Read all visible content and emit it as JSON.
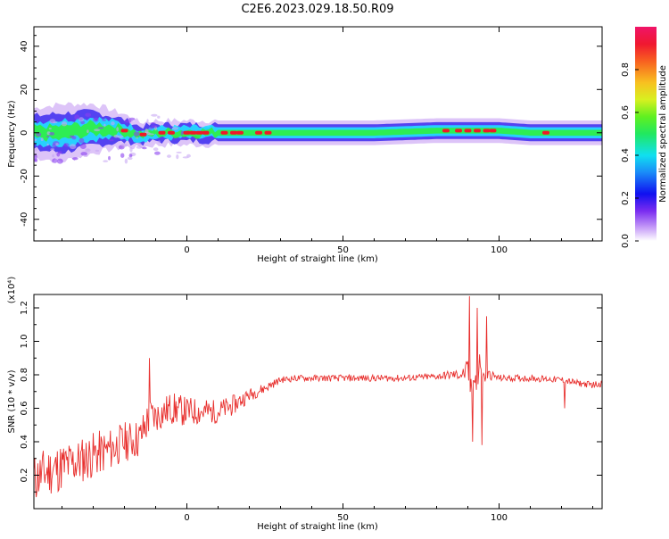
{
  "title": "C2E6.2023.029.18.50.R09",
  "chart_data": [
    {
      "type": "heatmap",
      "xlabel": "Height of straight line (km)",
      "ylabel": "Frequency (Hz)",
      "xlim": [
        -49,
        133
      ],
      "ylim": [
        -50,
        49
      ],
      "x_ticks": [
        "0",
        "50",
        "100"
      ],
      "y_ticks": [
        "40",
        "20",
        "0",
        "-20",
        "-40"
      ],
      "colorbar": {
        "label": "Normalized spectral amplitude",
        "range": [
          0,
          1
        ],
        "ticks": [
          "0.0",
          "0.2",
          "0.4",
          "0.6",
          "0.8"
        ]
      },
      "ridge": {
        "description_points_x": [
          -49,
          -40,
          -30,
          -20,
          -15,
          -10,
          0,
          10,
          20,
          30,
          40,
          60,
          80,
          90,
          100,
          110,
          120,
          133
        ],
        "center_freq": [
          0,
          0,
          2,
          1,
          -1,
          0,
          0,
          0,
          0,
          0,
          0,
          0,
          1,
          1,
          1,
          0,
          0,
          0
        ],
        "halfwidth_hz": [
          6,
          7,
          6,
          4,
          3,
          3,
          3,
          3,
          3,
          3,
          3,
          3,
          3,
          3,
          3,
          3,
          3,
          3
        ],
        "colors": {
          "outer": "#b47cf0",
          "mid": "#3c2cf0",
          "core": "#22e0ff",
          "inner": "#30f040",
          "peak": "#f01828"
        }
      }
    },
    {
      "type": "line",
      "xlabel": "Height of straight line (km)",
      "ylabel": "SNR (10 * v/v)",
      "y_multiplier": "(x10⁴)",
      "xlim": [
        -49,
        133
      ],
      "ylim": [
        0,
        1.28
      ],
      "x_ticks": [
        "0",
        "50",
        "100"
      ],
      "y_ticks": [
        "0.2",
        "0.4",
        "0.6",
        "0.8",
        "1.0",
        "1.2"
      ],
      "line_color": "#e8302e",
      "series": [
        {
          "x": [
            -49,
            -45,
            -40,
            -35,
            -30,
            -25,
            -20,
            -15,
            -12,
            -10,
            -5,
            0,
            5,
            10,
            15,
            20,
            25,
            30,
            35,
            40,
            50,
            60,
            70,
            80,
            85,
            88,
            90,
            91,
            92,
            93,
            94,
            95,
            96,
            97,
            100,
            110,
            120,
            125,
            130,
            133
          ],
          "values": [
            0.18,
            0.22,
            0.25,
            0.28,
            0.32,
            0.35,
            0.4,
            0.42,
            0.55,
            0.55,
            0.6,
            0.58,
            0.58,
            0.58,
            0.62,
            0.68,
            0.72,
            0.77,
            0.78,
            0.78,
            0.78,
            0.78,
            0.78,
            0.79,
            0.8,
            0.8,
            0.82,
            0.7,
            0.85,
            0.7,
            0.9,
            0.78,
            0.8,
            0.8,
            0.78,
            0.78,
            0.77,
            0.75,
            0.74,
            0.75
          ],
          "spikes": [
            {
              "x": -12,
              "value": 0.9
            },
            {
              "x": 90.5,
              "value": 1.27
            },
            {
              "x": 91.5,
              "value": 0.4
            },
            {
              "x": 93,
              "value": 1.2
            },
            {
              "x": 94.5,
              "value": 0.38
            },
            {
              "x": 96,
              "value": 1.15
            },
            {
              "x": 121,
              "value": 0.6
            }
          ],
          "noise_amp": [
            0.15,
            0.15,
            0.15,
            0.14,
            0.14,
            0.13,
            0.12,
            0.12,
            0.12,
            0.1,
            0.1,
            0.09,
            0.08,
            0.07,
            0.06,
            0.04,
            0.03,
            0.02,
            0.02,
            0.02,
            0.02,
            0.02,
            0.02,
            0.02,
            0.03,
            0.03,
            0.08,
            0.08,
            0.1,
            0.1,
            0.1,
            0.06,
            0.04,
            0.03,
            0.02,
            0.02,
            0.02,
            0.02,
            0.02,
            0.02
          ]
        }
      ]
    }
  ]
}
